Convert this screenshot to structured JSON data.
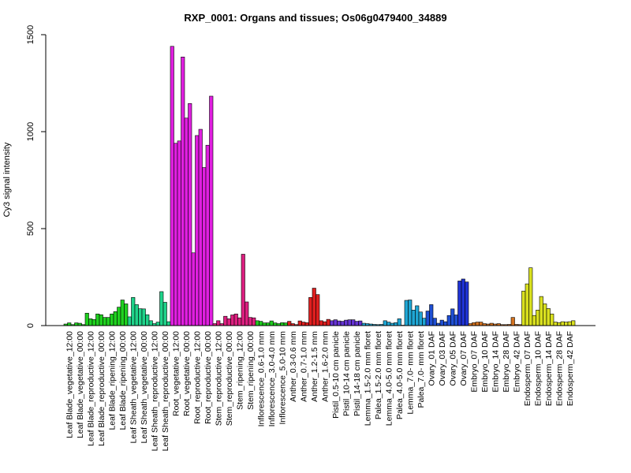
{
  "chart_data": {
    "type": "bar",
    "title": "RXP_0001: Organs and tissues; Os06g0479400_34889",
    "xlabel": "",
    "ylabel": "Cy3 signal intensity",
    "ylim": [
      0,
      1500
    ],
    "yticks": [
      0,
      500,
      1000,
      1500
    ],
    "grid": false,
    "legend": "none",
    "groups": [
      {
        "label": "Leaf Blade_vegetative_12:00",
        "color": "#1fd11f",
        "values": [
          8,
          14,
          5
        ]
      },
      {
        "label": "Leaf Blade_vegetative_00:00",
        "color": "#1fd11f",
        "values": [
          14,
          12,
          5
        ]
      },
      {
        "label": "Leaf Blade_reproductive_12:00",
        "color": "#1fd11f",
        "values": [
          64,
          35,
          31
        ]
      },
      {
        "label": "Leaf Blade_reproductive_00:00",
        "color": "#1fd11f",
        "values": [
          60,
          56,
          42
        ]
      },
      {
        "label": "Leaf Blade_ripening_12:00",
        "color": "#1fd11f",
        "values": [
          42,
          60,
          72
        ]
      },
      {
        "label": "Leaf Blade_ripening_00:00",
        "color": "#1fd11f",
        "values": [
          95,
          132,
          112
        ]
      },
      {
        "label": "Leaf Sheath_vegetative_12:00",
        "color": "#1fd38a",
        "values": [
          45,
          145,
          108
        ]
      },
      {
        "label": "Leaf Sheath_vegetative_00:00",
        "color": "#1fd38a",
        "values": [
          87,
          86,
          56
        ]
      },
      {
        "label": "Leaf Sheath_reproductive_12:00",
        "color": "#1fd38a",
        "values": [
          25,
          10,
          18
        ]
      },
      {
        "label": "Leaf Sheath_reproductive_00:00",
        "color": "#1fd38a",
        "values": [
          175,
          120,
          20
        ]
      },
      {
        "label": "Root_vegetative_12:00",
        "color": "#e01fe0",
        "values": [
          1440,
          940,
          952
        ]
      },
      {
        "label": "Root_vegetative_00:00",
        "color": "#e01fe0",
        "values": [
          1385,
          1070,
          1145
        ]
      },
      {
        "label": "Root_reproductive_12:00",
        "color": "#e01fe0",
        "values": [
          375,
          980,
          1012
        ]
      },
      {
        "label": "Root_reproductive_00:00",
        "color": "#e01fe0",
        "values": [
          815,
          930,
          1183
        ]
      },
      {
        "label": "Stem_reproductive_12:00",
        "color": "#dd1f80",
        "values": [
          10,
          25,
          10
        ]
      },
      {
        "label": "Stem_reproductive_00:00",
        "color": "#dd1f80",
        "values": [
          48,
          35,
          55
        ]
      },
      {
        "label": "Stem_ripening_12:00",
        "color": "#dd1f80",
        "values": [
          60,
          40,
          368
        ]
      },
      {
        "label": "Stem_ripening_00:00",
        "color": "#dd1f80",
        "values": [
          122,
          42,
          40
        ]
      },
      {
        "label": "Inflorescence_0.6-1.0 mm",
        "color": "#1fcc1f",
        "values": [
          25,
          22,
          14
        ]
      },
      {
        "label": "Inflorescence_3.0-4.0 mm",
        "color": "#1fcc1f",
        "values": [
          14,
          24,
          14
        ]
      },
      {
        "label": "Inflorescence_5.0-10 mm",
        "color": "#1fcc1f",
        "values": [
          10,
          15,
          14
        ]
      },
      {
        "label": "Anther_0.3-0.6 mm",
        "color": "#e01f1f",
        "values": [
          22,
          10,
          5
        ]
      },
      {
        "label": "Anther_0.7-1.0 mm",
        "color": "#e01f1f",
        "values": [
          24,
          18,
          15
        ]
      },
      {
        "label": "Anther_1.2-1.5 mm",
        "color": "#e01f1f",
        "values": [
          145,
          193,
          160
        ]
      },
      {
        "label": "Anther_1.6-2.0 mm",
        "color": "#e01f1f",
        "values": [
          25,
          20,
          32
        ]
      },
      {
        "label": "Pistil_0.5-10 cm panicle",
        "color": "#6633d4",
        "values": [
          25,
          30,
          24
        ]
      },
      {
        "label": "Pistil_10-14 cm panicle",
        "color": "#6633d4",
        "values": [
          22,
          28,
          30
        ]
      },
      {
        "label": "Pistil_14-18 cm panicle",
        "color": "#6633d4",
        "values": [
          30,
          22,
          24
        ]
      },
      {
        "label": "Lemma_1.5-2.0 mm floret",
        "color": "#1fa6d4",
        "values": [
          12,
          10,
          8
        ]
      },
      {
        "label": "Palea_1.5-2.0 mm floret",
        "color": "#1fa6d4",
        "values": [
          6,
          5,
          6
        ]
      },
      {
        "label": "Lemma_4.0-5.0 mm floret",
        "color": "#1fa6d4",
        "values": [
          25,
          18,
          12
        ]
      },
      {
        "label": "Palea_4.0-5.0 mm floret",
        "color": "#1fa6d4",
        "values": [
          15,
          35,
          2
        ]
      },
      {
        "label": "Lemma_7.0- mm floret",
        "color": "#1fa6d4",
        "values": [
          130,
          132,
          80
        ]
      },
      {
        "label": "Palea_7.0- mm floret",
        "color": "#1fa6d4",
        "values": [
          102,
          70,
          38
        ]
      },
      {
        "label": "Ovary_01 DAF",
        "color": "#1f4fd4",
        "values": [
          75,
          108,
          38
        ]
      },
      {
        "label": "Ovary_03 DAF",
        "color": "#1f4fd4",
        "values": [
          12,
          28,
          20
        ]
      },
      {
        "label": "Ovary_05 DAF",
        "color": "#1f4fd4",
        "values": [
          52,
          86,
          55
        ]
      },
      {
        "label": "Ovary_07 DAF",
        "color": "#1f33d4",
        "values": [
          230,
          240,
          225
        ]
      },
      {
        "label": "Embryo_07 DAF",
        "color": "#d4721f",
        "values": [
          10,
          15,
          18
        ]
      },
      {
        "label": "Embryo_10 DAF",
        "color": "#d4721f",
        "values": [
          18,
          10,
          8
        ]
      },
      {
        "label": "Embryo_14 DAF",
        "color": "#d4721f",
        "values": [
          12,
          8,
          10
        ]
      },
      {
        "label": "Embryo_28 DAF",
        "color": "#d4721f",
        "values": [
          5,
          5,
          6
        ]
      },
      {
        "label": "Embryo_42 DAF",
        "color": "#d4721f",
        "values": [
          42,
          6,
          5
        ]
      },
      {
        "label": "Endosperm_07 DAF",
        "color": "#d9e01f",
        "values": [
          178,
          215,
          298
        ]
      },
      {
        "label": "Endosperm_10 DAF",
        "color": "#d9e01f",
        "values": [
          52,
          80,
          150
        ]
      },
      {
        "label": "Endosperm_14 DAF",
        "color": "#d9e01f",
        "values": [
          112,
          88,
          60
        ]
      },
      {
        "label": "Endosperm_28 DAF",
        "color": "#d9e01f",
        "values": [
          18,
          15,
          20
        ]
      },
      {
        "label": "Endosperm_42 DAF",
        "color": "#d9e01f",
        "values": [
          18,
          20,
          25
        ]
      }
    ]
  }
}
